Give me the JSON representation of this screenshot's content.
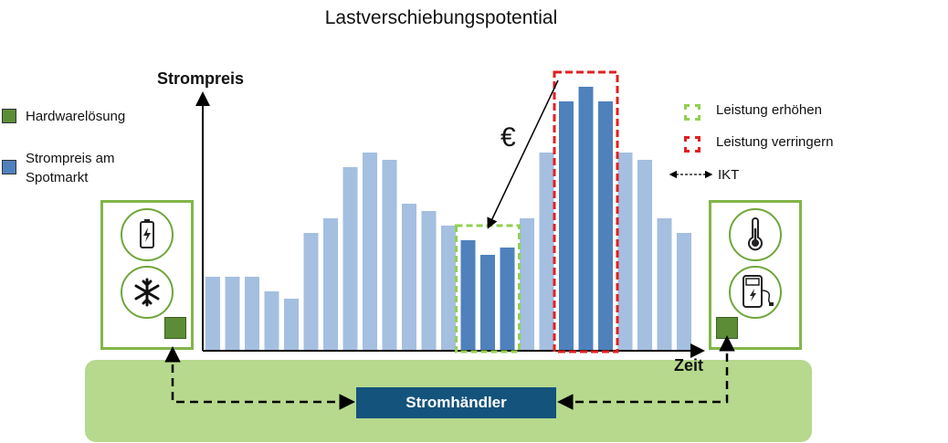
{
  "title": "Lastverschiebungspotential",
  "axes": {
    "y_label": "Strompreis",
    "x_label": "Zeit"
  },
  "legend_left": [
    {
      "label": "Hardwarelösung",
      "color": "#5d8c36"
    },
    {
      "label": "Strompreis am Spotmarkt",
      "color": "#4f81bd"
    }
  ],
  "legend_right": [
    {
      "label": "Leistung erhöhen",
      "color": "#92d050"
    },
    {
      "label": "Leistung verringern",
      "color": "#e02020"
    }
  ],
  "ikt_label": "IKT",
  "euro_symbol": "€",
  "trader_label": "Stromhändler",
  "left_panel_icons": [
    "battery-charging-icon",
    "snowflake-icon"
  ],
  "right_panel_icons": [
    "thermometer-icon",
    "ev-charger-icon"
  ],
  "colors": {
    "bar_light": "#a4bfe0",
    "bar_dark": "#4f81bd",
    "panel_border": "#82b548",
    "band": "#b6d98d",
    "trader": "#14537c"
  },
  "chart_data": {
    "type": "bar",
    "xlabel": "Zeit",
    "ylabel": "Strompreis",
    "values": [
      5,
      5,
      5,
      4,
      3.5,
      8,
      9,
      12.5,
      13.5,
      13,
      10,
      9.5,
      8.5,
      7.5,
      6.5,
      7,
      9,
      13.5,
      17,
      18,
      17,
      13.5,
      13,
      9,
      8
    ],
    "highlight_increase": [
      13,
      14,
      15
    ],
    "highlight_decrease": [
      18,
      19,
      20
    ]
  }
}
